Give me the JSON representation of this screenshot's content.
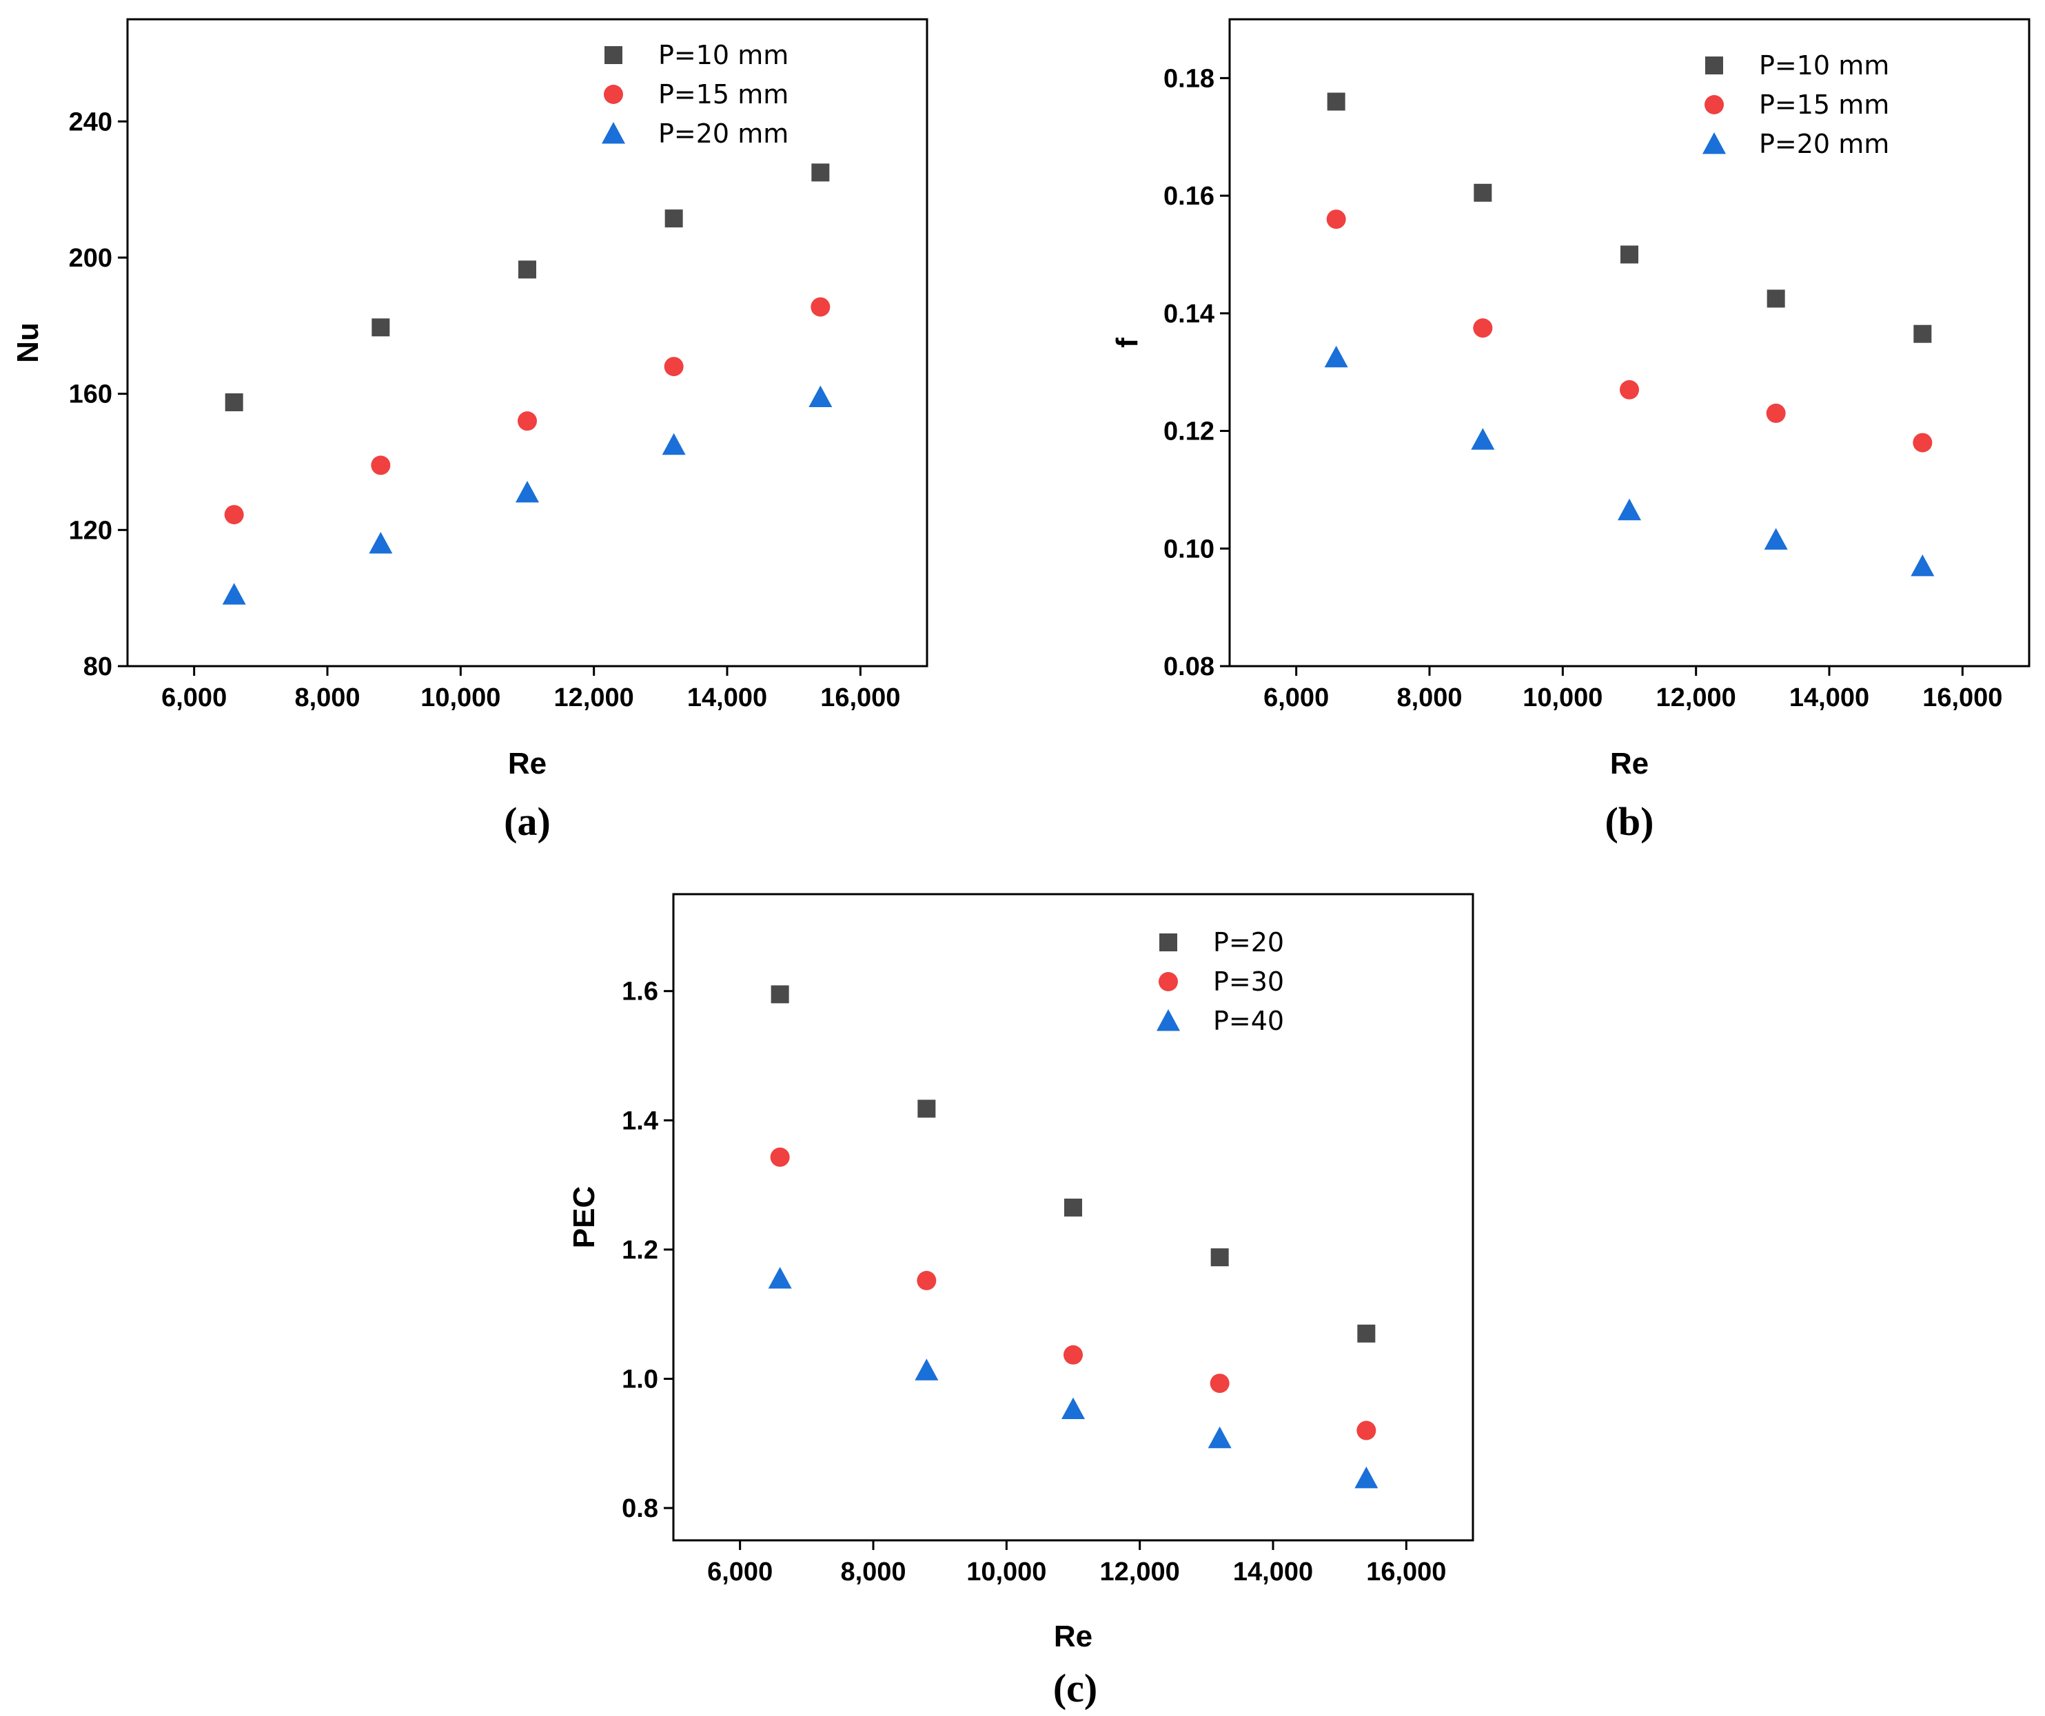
{
  "chart_data": [
    {
      "panel": "(a)",
      "type": "scatter",
      "xlabel": "Re",
      "ylabel": "Nu",
      "xlim": [
        5000,
        17000
      ],
      "ylim": [
        80,
        270
      ],
      "xticks": [
        6000,
        8000,
        10000,
        12000,
        14000,
        16000
      ],
      "xtick_labels": [
        "6,000",
        "8,000",
        "10,000",
        "12,000",
        "14,000",
        "16,000"
      ],
      "yticks": [
        80,
        120,
        160,
        200,
        240
      ],
      "ytick_labels": [
        "80",
        "120",
        "160",
        "200",
        "240"
      ],
      "legend_position": "top-right",
      "x": [
        6600,
        8800,
        11000,
        13200,
        15400
      ],
      "series": [
        {
          "name": "P=10 mm",
          "marker": "square",
          "color": "#4a4a4a",
          "values": [
            157.5,
            179.5,
            196.5,
            211.5,
            225
          ]
        },
        {
          "name": "P=15 mm",
          "marker": "circle",
          "color": "#f04040",
          "values": [
            124.5,
            139,
            152,
            168,
            185.5
          ]
        },
        {
          "name": "P=20 mm",
          "marker": "triangle",
          "color": "#1a6fd8",
          "values": [
            101,
            116,
            131,
            145,
            159
          ]
        }
      ]
    },
    {
      "panel": "(b)",
      "type": "scatter",
      "xlabel": "Re",
      "ylabel": "f",
      "xlim": [
        5000,
        17000
      ],
      "ylim": [
        0.08,
        0.19
      ],
      "xticks": [
        6000,
        8000,
        10000,
        12000,
        14000,
        16000
      ],
      "xtick_labels": [
        "6,000",
        "8,000",
        "10,000",
        "12,000",
        "14,000",
        "16,000"
      ],
      "yticks": [
        0.08,
        0.1,
        0.12,
        0.14,
        0.16,
        0.18
      ],
      "ytick_labels": [
        "0.08",
        "0.10",
        "0.12",
        "0.14",
        "0.16",
        "0.18"
      ],
      "legend_position": "top-right",
      "x": [
        6600,
        8800,
        11000,
        13200,
        15400
      ],
      "series": [
        {
          "name": "P=10 mm",
          "marker": "square",
          "color": "#4a4a4a",
          "values": [
            0.176,
            0.1605,
            0.15,
            0.1425,
            0.1365
          ]
        },
        {
          "name": "P=15 mm",
          "marker": "circle",
          "color": "#f04040",
          "values": [
            0.156,
            0.1375,
            0.127,
            0.123,
            0.118
          ]
        },
        {
          "name": "P=20 mm",
          "marker": "triangle",
          "color": "#1a6fd8",
          "values": [
            0.1325,
            0.1185,
            0.1065,
            0.1015,
            0.097
          ]
        }
      ]
    },
    {
      "panel": "(c)",
      "type": "scatter",
      "xlabel": "Re",
      "ylabel": "PEC",
      "xlim": [
        5000,
        17000
      ],
      "ylim": [
        0.75,
        1.75
      ],
      "xticks": [
        6000,
        8000,
        10000,
        12000,
        14000,
        16000
      ],
      "xtick_labels": [
        "6,000",
        "8,000",
        "10,000",
        "12,000",
        "14,000",
        "16,000"
      ],
      "yticks": [
        0.8,
        1.0,
        1.2,
        1.4,
        1.6
      ],
      "ytick_labels": [
        "0.8",
        "1.0",
        "1.2",
        "1.4",
        "1.6"
      ],
      "legend_position": "top-right",
      "x": [
        6600,
        8800,
        11000,
        13200,
        15400
      ],
      "series": [
        {
          "name": "P=20",
          "marker": "square",
          "color": "#4a4a4a",
          "values": [
            1.595,
            1.418,
            1.265,
            1.188,
            1.07
          ]
        },
        {
          "name": "P=30",
          "marker": "circle",
          "color": "#f04040",
          "values": [
            1.343,
            1.152,
            1.037,
            0.993,
            0.92
          ]
        },
        {
          "name": "P=40",
          "marker": "triangle",
          "color": "#1a6fd8",
          "values": [
            1.155,
            1.013,
            0.953,
            0.908,
            0.846
          ]
        }
      ]
    }
  ]
}
